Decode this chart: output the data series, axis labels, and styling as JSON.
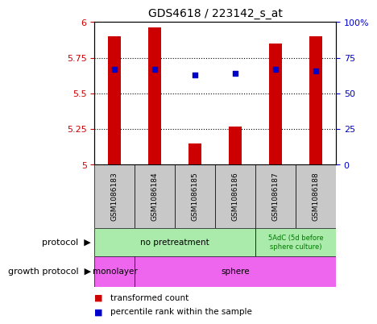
{
  "title": "GDS4618 / 223142_s_at",
  "samples": [
    "GSM1086183",
    "GSM1086184",
    "GSM1086185",
    "GSM1086186",
    "GSM1086187",
    "GSM1086188"
  ],
  "bar_values": [
    5.9,
    5.96,
    5.15,
    5.27,
    5.85,
    5.9
  ],
  "bar_bottom": 5.0,
  "blue_dot_values": [
    5.67,
    5.67,
    5.63,
    5.64,
    5.67,
    5.66
  ],
  "ylim_left": [
    5.0,
    6.0
  ],
  "ylim_right": [
    0,
    100
  ],
  "yticks_left": [
    5.0,
    5.25,
    5.5,
    5.75,
    6.0
  ],
  "yticks_right": [
    0,
    25,
    50,
    75,
    100
  ],
  "ytick_labels_left": [
    "5",
    "5.25",
    "5.5",
    "5.75",
    "6"
  ],
  "ytick_labels_right": [
    "0",
    "25",
    "50",
    "75",
    "100%"
  ],
  "bar_color": "#cc0000",
  "dot_color": "#0000cc",
  "hgrid_vals": [
    5.25,
    5.5,
    5.75
  ],
  "protocol_labels": [
    "no pretreatment",
    "5AdC (5d before\nsphere culture)"
  ],
  "protocol_color": "#aaeaaa",
  "protocol_text_color": "#007700",
  "growth_labels": [
    "monolayer",
    "sphere"
  ],
  "growth_color": "#ee66ee",
  "legend_red": "transformed count",
  "legend_blue": "percentile rank within the sample",
  "sample_box_color": "#c8c8c8",
  "left_label_color": "#cc0000",
  "right_label_color": "#0000cc",
  "bar_width": 0.32
}
